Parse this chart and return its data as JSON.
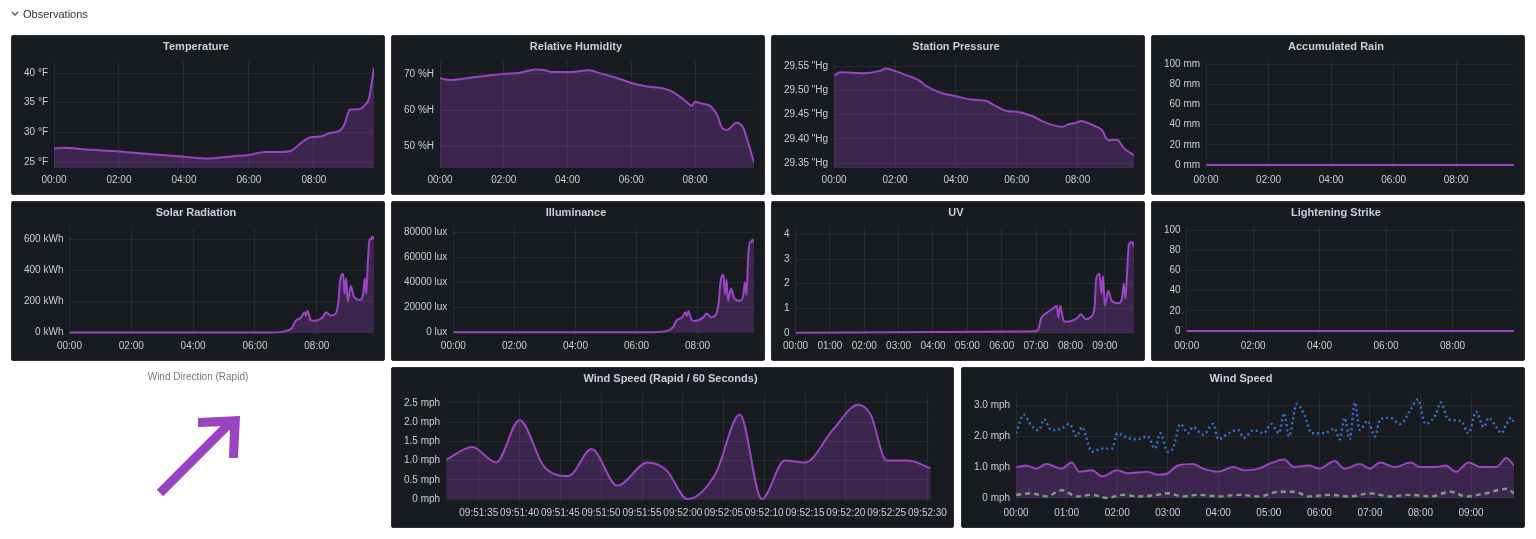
{
  "chart_data": [
    {
      "type": "other",
      "title": "Observations"
    },
    {
      "type": "area",
      "title": "Temperature",
      "grid": true,
      "xlim": [
        0,
        9.85
      ],
      "ylim": [
        24,
        42
      ],
      "xticks": [
        {
          "value": 0,
          "label": "00:00"
        },
        {
          "value": 2,
          "label": "02:00"
        },
        {
          "value": 4,
          "label": "04:00"
        },
        {
          "value": 6,
          "label": "06:00"
        },
        {
          "value": 8,
          "label": "08:00"
        }
      ],
      "yticks": [
        {
          "value": 25,
          "label": "25 °F"
        },
        {
          "value": 30,
          "label": "30 °F"
        },
        {
          "value": 35,
          "label": "35 °F"
        },
        {
          "value": 40,
          "label": "40 °F"
        }
      ],
      "color": "#9c44c4",
      "x": [
        0,
        0.3,
        1,
        2,
        3,
        4,
        4.7,
        5.5,
        6,
        6.5,
        7,
        7.3,
        7.6,
        7.9,
        8.2,
        8.5,
        8.8,
        8.95,
        9.1,
        9.4,
        9.55,
        9.7,
        9.85
      ],
      "values": [
        27.3,
        27.4,
        27.1,
        26.8,
        26.3,
        25.9,
        25.6,
        26.0,
        26.2,
        26.7,
        26.7,
        26.9,
        28.2,
        29.2,
        29.3,
        29.9,
        30.3,
        31.5,
        33.8,
        33.9,
        34.5,
        35.8,
        40.9
      ]
    },
    {
      "type": "area",
      "title": "Relative Humidity",
      "grid": true,
      "xlim": [
        0,
        9.85
      ],
      "ylim": [
        44,
        73.5
      ],
      "xticks": [
        {
          "value": 0,
          "label": "00:00"
        },
        {
          "value": 2,
          "label": "02:00"
        },
        {
          "value": 4,
          "label": "04:00"
        },
        {
          "value": 6,
          "label": "06:00"
        },
        {
          "value": 8,
          "label": "08:00"
        }
      ],
      "yticks": [
        {
          "value": 50,
          "label": "50 %H"
        },
        {
          "value": 60,
          "label": "60 %H"
        },
        {
          "value": 70,
          "label": "70 %H"
        }
      ],
      "color": "#9c44c4",
      "x": [
        0,
        0.3,
        1,
        1.5,
        2,
        2.5,
        3,
        3.3,
        3.5,
        4,
        4.7,
        5,
        5.5,
        6,
        6.5,
        7,
        7.3,
        7.7,
        7.9,
        8,
        8.2,
        8.5,
        8.7,
        8.85,
        9,
        9.3,
        9.5,
        9.7,
        9.85
      ],
      "values": [
        68.8,
        68.3,
        69,
        69.5,
        70,
        70.3,
        71.2,
        71,
        70.5,
        70.5,
        71,
        70.2,
        69,
        67.5,
        66.5,
        66,
        65,
        62.5,
        61.2,
        62.3,
        61.8,
        61,
        58.5,
        55,
        54.5,
        56.5,
        55.3,
        50,
        45.5
      ]
    },
    {
      "type": "area",
      "title": "Station Pressure",
      "grid": true,
      "xlim": [
        0,
        9.85
      ],
      "ylim": [
        29.34,
        29.56
      ],
      "xticks": [
        {
          "value": 0,
          "label": "00:00"
        },
        {
          "value": 2,
          "label": "02:00"
        },
        {
          "value": 4,
          "label": "04:00"
        },
        {
          "value": 6,
          "label": "06:00"
        },
        {
          "value": 8,
          "label": "08:00"
        }
      ],
      "yticks": [
        {
          "value": 29.35,
          "label": "29.35 \"Hg"
        },
        {
          "value": 29.4,
          "label": "29.40 \"Hg"
        },
        {
          "value": 29.45,
          "label": "29.45 \"Hg"
        },
        {
          "value": 29.5,
          "label": "29.50 \"Hg"
        },
        {
          "value": 29.55,
          "label": "29.55 \"Hg"
        }
      ],
      "color": "#9c44c4",
      "x": [
        0,
        0.2,
        1,
        1.5,
        1.7,
        2,
        2.3,
        2.8,
        3,
        3.5,
        4,
        4.5,
        5,
        5.3,
        5.7,
        6,
        6.5,
        7,
        7.5,
        7.7,
        8,
        8.1,
        8.5,
        8.8,
        9,
        9.3,
        9.5,
        9.85
      ],
      "values": [
        29.53,
        29.537,
        29.535,
        29.54,
        29.545,
        29.54,
        29.533,
        29.52,
        29.51,
        29.495,
        29.488,
        29.481,
        29.478,
        29.468,
        29.457,
        29.456,
        29.447,
        29.432,
        29.425,
        29.43,
        29.434,
        29.437,
        29.428,
        29.418,
        29.397,
        29.398,
        29.382,
        29.366
      ]
    },
    {
      "type": "line",
      "title": "Accumulated Rain",
      "grid": true,
      "xlim": [
        0,
        9.85
      ],
      "ylim": [
        -3,
        103
      ],
      "xticks": [
        {
          "value": 0,
          "label": "00:00"
        },
        {
          "value": 2,
          "label": "02:00"
        },
        {
          "value": 4,
          "label": "04:00"
        },
        {
          "value": 6,
          "label": "06:00"
        },
        {
          "value": 8,
          "label": "08:00"
        }
      ],
      "yticks": [
        {
          "value": 0,
          "label": "0 mm"
        },
        {
          "value": 20,
          "label": "20 mm"
        },
        {
          "value": 40,
          "label": "40 mm"
        },
        {
          "value": 60,
          "label": "60 mm"
        },
        {
          "value": 80,
          "label": "80 mm"
        },
        {
          "value": 100,
          "label": "100 mm"
        }
      ],
      "color": "#9c44c4",
      "x": [
        0,
        9.85
      ],
      "values": [
        0,
        0
      ]
    },
    {
      "type": "area",
      "title": "Solar Radiation",
      "grid": true,
      "xlim": [
        0,
        9.85
      ],
      "ylim": [
        -10,
        680
      ],
      "xticks": [
        {
          "value": 0,
          "label": "00:00"
        },
        {
          "value": 2,
          "label": "02:00"
        },
        {
          "value": 4,
          "label": "04:00"
        },
        {
          "value": 6,
          "label": "06:00"
        },
        {
          "value": 8,
          "label": "08:00"
        }
      ],
      "yticks": [
        {
          "value": 0,
          "label": "0 kWh"
        },
        {
          "value": 200,
          "label": "200 kWh"
        },
        {
          "value": 400,
          "label": "400 kWh"
        },
        {
          "value": 600,
          "label": "600 kWh"
        }
      ],
      "color": "#9c44c4",
      "x": [
        0,
        6.5,
        7,
        7.2,
        7.3,
        7.5,
        7.6,
        7.65,
        7.7,
        7.8,
        7.9,
        8.2,
        8.3,
        8.45,
        8.6,
        8.7,
        8.75,
        8.85,
        8.9,
        8.95,
        9,
        9.1,
        9.2,
        9.4,
        9.5,
        9.55,
        9.6,
        9.65,
        9.7,
        9.75,
        9.8,
        9.85
      ],
      "values": [
        0,
        0,
        10,
        30,
        70,
        100,
        130,
        110,
        140,
        80,
        75,
        100,
        130,
        110,
        120,
        200,
        330,
        380,
        250,
        350,
        200,
        300,
        230,
        210,
        250,
        350,
        250,
        450,
        600,
        600,
        620,
        600
      ]
    },
    {
      "type": "area",
      "title": "Illuminance",
      "grid": true,
      "xlim": [
        0,
        9.85
      ],
      "ylim": [
        -1500,
        84000
      ],
      "xticks": [
        {
          "value": 0,
          "label": "00:00"
        },
        {
          "value": 2,
          "label": "02:00"
        },
        {
          "value": 4,
          "label": "04:00"
        },
        {
          "value": 6,
          "label": "06:00"
        },
        {
          "value": 8,
          "label": "08:00"
        }
      ],
      "yticks": [
        {
          "value": 0,
          "label": "0 lux"
        },
        {
          "value": 20000,
          "label": "20000 lux"
        },
        {
          "value": 40000,
          "label": "40000 lux"
        },
        {
          "value": 60000,
          "label": "60000 lux"
        },
        {
          "value": 80000,
          "label": "80000 lux"
        }
      ],
      "color": "#9c44c4",
      "x": [
        0,
        6.5,
        7,
        7.2,
        7.3,
        7.5,
        7.6,
        7.65,
        7.7,
        7.8,
        7.9,
        8.2,
        8.3,
        8.45,
        8.6,
        8.7,
        8.75,
        8.85,
        8.9,
        8.95,
        9,
        9.1,
        9.2,
        9.4,
        9.5,
        9.55,
        9.6,
        9.65,
        9.7,
        9.75,
        9.8,
        9.85
      ],
      "values": [
        0,
        0,
        1000,
        4000,
        9000,
        12000,
        16000,
        13000,
        17000,
        10000,
        9000,
        12000,
        15000,
        12000,
        14000,
        25000,
        40000,
        46000,
        30000,
        42000,
        25000,
        35000,
        27000,
        25000,
        30000,
        40000,
        30000,
        55000,
        72000,
        72000,
        74000,
        72000
      ]
    },
    {
      "type": "area",
      "title": "UV",
      "grid": true,
      "xlim": [
        0,
        9.85
      ],
      "ylim": [
        -0.05,
        4.3
      ],
      "xticks": [
        {
          "value": 0,
          "label": "00:00"
        },
        {
          "value": 1,
          "label": "01:00"
        },
        {
          "value": 2,
          "label": "02:00"
        },
        {
          "value": 3,
          "label": "03:00"
        },
        {
          "value": 4,
          "label": "04:00"
        },
        {
          "value": 5,
          "label": "05:00"
        },
        {
          "value": 6,
          "label": "06:00"
        },
        {
          "value": 7,
          "label": "07:00"
        },
        {
          "value": 8,
          "label": "08:00"
        },
        {
          "value": 9,
          "label": "09:00"
        }
      ],
      "yticks": [
        0,
        1,
        2,
        3,
        4
      ],
      "color": "#9c44c4",
      "x": [
        0,
        6.8,
        7.05,
        7.15,
        7.3,
        7.5,
        7.6,
        7.65,
        7.7,
        7.8,
        7.9,
        8.2,
        8.3,
        8.45,
        8.6,
        8.7,
        8.75,
        8.85,
        8.9,
        8.95,
        9,
        9.1,
        9.2,
        9.4,
        9.5,
        9.55,
        9.6,
        9.65,
        9.7,
        9.8,
        9.85
      ],
      "values": [
        0,
        0.05,
        0.1,
        0.6,
        0.8,
        1,
        1.1,
        0.6,
        1.1,
        0.5,
        0.45,
        0.6,
        0.75,
        0.55,
        0.65,
        1,
        2.2,
        2.4,
        1.6,
        2.3,
        1.1,
        1.7,
        1.3,
        1.2,
        1.4,
        2,
        1.4,
        2.5,
        3.6,
        3.7,
        3.5
      ]
    },
    {
      "type": "line",
      "title": "Lightening Strike",
      "grid": true,
      "xlim": [
        0,
        9.85
      ],
      "ylim": [
        -3,
        103
      ],
      "xticks": [
        {
          "value": 0,
          "label": "00:00"
        },
        {
          "value": 2,
          "label": "02:00"
        },
        {
          "value": 4,
          "label": "04:00"
        },
        {
          "value": 6,
          "label": "06:00"
        },
        {
          "value": 8,
          "label": "08:00"
        }
      ],
      "yticks": [
        0,
        20,
        40,
        60,
        80,
        100
      ],
      "color": "#9c44c4",
      "x": [
        0,
        9.85
      ],
      "values": [
        0,
        0
      ]
    },
    {
      "type": "other",
      "title": "Wind Direction (Rapid)"
    },
    {
      "type": "area",
      "title": "Wind Speed (Rapid / 60 Seconds)",
      "grid": true,
      "xlim": [
        9.85861,
        9.87511
      ],
      "ylim": [
        -0.05,
        2.75
      ],
      "xticks": [
        {
          "value": 9.85972,
          "label": "09:51:35"
        },
        {
          "value": 9.86111,
          "label": "09:51:40"
        },
        {
          "value": 9.8625,
          "label": "09:51:45"
        },
        {
          "value": 9.86389,
          "label": "09:51:50"
        },
        {
          "value": 9.86528,
          "label": "09:51:55"
        },
        {
          "value": 9.86667,
          "label": "09:52:00"
        },
        {
          "value": 9.86806,
          "label": "09:52:05"
        },
        {
          "value": 9.86944,
          "label": "09:52:10"
        },
        {
          "value": 9.87083,
          "label": "09:52:15"
        },
        {
          "value": 9.87222,
          "label": "09:52:20"
        },
        {
          "value": 9.87361,
          "label": "09:52:25"
        },
        {
          "value": 9.875,
          "label": "09:52:30"
        }
      ],
      "yticks": [
        {
          "value": 0,
          "label": "0 mph"
        },
        {
          "value": 0.5,
          "label": "0.5 mph"
        },
        {
          "value": 1,
          "label": "1.0 mph"
        },
        {
          "value": 1.5,
          "label": "1.5 mph"
        },
        {
          "value": 2,
          "label": "2.0 mph"
        },
        {
          "value": 2.5,
          "label": "2.5 mph"
        }
      ],
      "color": "#9c44c4",
      "x": [
        9.85861,
        9.8595,
        9.86031,
        9.86111,
        9.86194,
        9.86278,
        9.86356,
        9.86444,
        9.86547,
        9.86611,
        9.86683,
        9.86778,
        9.86861,
        9.86936,
        9.87014,
        9.87083,
        9.87178,
        9.87264,
        9.87306,
        9.87361,
        9.87433,
        9.87511
      ],
      "values": [
        1.02,
        1.35,
        0.95,
        2.05,
        0.85,
        0.6,
        1.3,
        0.35,
        0.95,
        0.75,
        0,
        0.65,
        2.2,
        0,
        1,
        0.95,
        1.8,
        2.45,
        2.2,
        1,
        1,
        0.8
      ]
    },
    {
      "type": "line",
      "title": "Wind Speed",
      "grid": true,
      "xlim": [
        0,
        9.85
      ],
      "ylim": [
        -0.1,
        3.4
      ],
      "xticks": [
        {
          "value": 0,
          "label": "00:00"
        },
        {
          "value": 1,
          "label": "01:00"
        },
        {
          "value": 2,
          "label": "02:00"
        },
        {
          "value": 3,
          "label": "03:00"
        },
        {
          "value": 4,
          "label": "04:00"
        },
        {
          "value": 5,
          "label": "05:00"
        },
        {
          "value": 6,
          "label": "06:00"
        },
        {
          "value": 7,
          "label": "07:00"
        },
        {
          "value": 8,
          "label": "08:00"
        },
        {
          "value": 9,
          "label": "09:00"
        }
      ],
      "yticks": [
        {
          "value": 0,
          "label": "0 mph"
        },
        {
          "value": 1,
          "label": "1.0 mph"
        },
        {
          "value": 2,
          "label": "2.0 mph"
        },
        {
          "value": 3,
          "label": "3.0 mph"
        }
      ],
      "series": [
        {
          "type": "area",
          "color": "#9c44c4",
          "line_style": "solid",
          "x": [
            0,
            0.2,
            0.4,
            0.6,
            0.9,
            1.1,
            1.25,
            1.5,
            1.7,
            2,
            2.2,
            2.6,
            2.8,
            3,
            3.2,
            3.5,
            3.7,
            4,
            4.3,
            4.5,
            4.8,
            5,
            5.3,
            5.5,
            5.8,
            6,
            6.3,
            6.5,
            6.8,
            7,
            7.2,
            7.5,
            7.8,
            8,
            8.3,
            8.5,
            8.7,
            8.95,
            9.2,
            9.5,
            9.7,
            9.85
          ],
          "values": [
            1,
            1.05,
            0.95,
            1.1,
            0.95,
            1.15,
            0.85,
            0.9,
            0.7,
            0.9,
            0.8,
            0.85,
            0.75,
            0.8,
            1.05,
            1.1,
            0.95,
            0.85,
            1,
            0.9,
            0.95,
            1.1,
            1.25,
            1,
            1.05,
            0.95,
            1.2,
            0.95,
            1.1,
            0.95,
            1.15,
            1,
            1.15,
            1,
            1,
            1.05,
            0.85,
            1.15,
            1,
            1,
            1.3,
            1.05
          ]
        },
        {
          "type": "line",
          "color": "#3274d9",
          "line_style": "dotted",
          "x": [
            0,
            0.15,
            0.3,
            0.45,
            0.55,
            0.7,
            0.9,
            1.05,
            1.2,
            1.3,
            1.5,
            1.7,
            1.9,
            2,
            2.2,
            2.4,
            2.6,
            2.75,
            2.85,
            3,
            3.1,
            3.25,
            3.4,
            3.5,
            3.7,
            3.9,
            4,
            4.2,
            4.4,
            4.5,
            4.7,
            4.9,
            5.05,
            5.2,
            5.3,
            5.4,
            5.55,
            5.7,
            5.85,
            6.1,
            6.3,
            6.4,
            6.5,
            6.6,
            6.7,
            6.8,
            6.95,
            7.1,
            7.2,
            7.4,
            7.6,
            7.8,
            7.95,
            8.1,
            8.3,
            8.4,
            8.55,
            8.8,
            8.95,
            9.1,
            9.25,
            9.35,
            9.5,
            9.6,
            9.7,
            9.8,
            9.85
          ],
          "values": [
            2.1,
            2.7,
            2.35,
            2.2,
            2.55,
            2.2,
            2.25,
            2.4,
            2,
            2.3,
            1.5,
            1.6,
            1.6,
            2.1,
            1.95,
            1.9,
            2,
            1.6,
            2.1,
            1.5,
            1.6,
            2.4,
            2.1,
            2.3,
            2.05,
            2.4,
            1.9,
            2.1,
            2.2,
            1.95,
            2.2,
            2.1,
            2.4,
            2.1,
            2.75,
            2,
            3.05,
            2.7,
            2.1,
            2.1,
            2.25,
            1.9,
            2.6,
            1.9,
            3.1,
            2.2,
            2.5,
            2,
            2.55,
            2.6,
            2.4,
            2.85,
            3.2,
            2.4,
            2.7,
            3.1,
            2.55,
            2.5,
            2.1,
            2.8,
            2.3,
            2.6,
            2.3,
            2.1,
            2.4,
            2.6,
            2.45
          ]
        },
        {
          "type": "line",
          "color": "#73bf69",
          "line_style": "dashed",
          "x": [
            0,
            0.3,
            0.6,
            0.9,
            1.2,
            1.5,
            1.8,
            2.1,
            2.4,
            2.8,
            3,
            3.3,
            3.6,
            4,
            4.4,
            4.8,
            5.2,
            5.5,
            5.8,
            6.2,
            6.6,
            7,
            7.4,
            7.8,
            8.2,
            8.6,
            8.9,
            9.3,
            9.7,
            9.85
          ],
          "values": [
            0.1,
            0.15,
            0.05,
            0.25,
            0.05,
            0.1,
            0,
            0.1,
            0.05,
            0.1,
            0.15,
            0.05,
            0.1,
            0.05,
            0.1,
            0.05,
            0.2,
            0.2,
            0.05,
            0.1,
            0.05,
            0.15,
            0.05,
            0.1,
            0.05,
            0.2,
            0.05,
            0.15,
            0.3,
            0.15
          ]
        }
      ]
    }
  ]
}
